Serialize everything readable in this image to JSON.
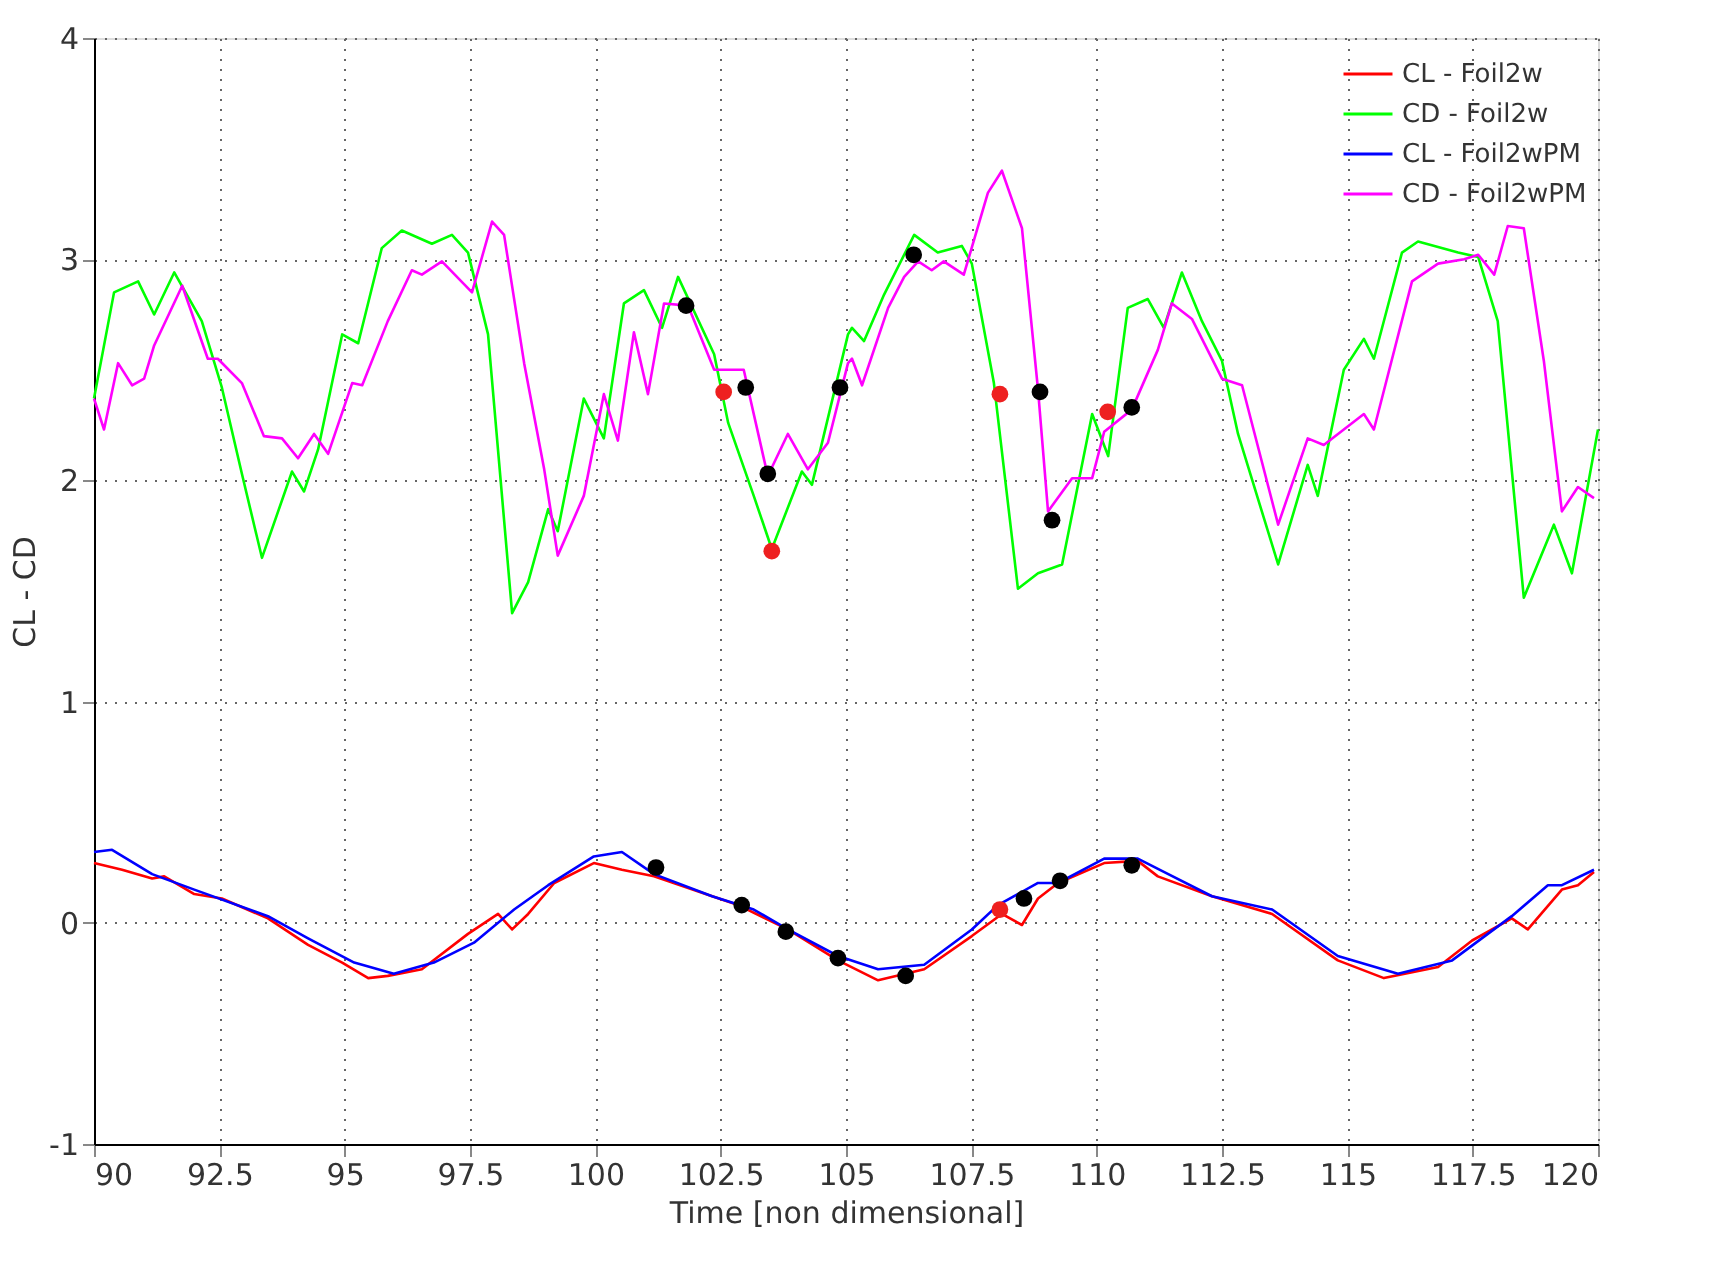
{
  "chart_data": {
    "type": "line",
    "xlabel": "Time [non dimensional]",
    "ylabel": "CL - CD",
    "xlim": [
      90,
      120
    ],
    "ylim": [
      -1,
      4
    ],
    "xticks": [
      90,
      92.5,
      95,
      97.5,
      100,
      102.5,
      105,
      107.5,
      110,
      112.5,
      115,
      117.5,
      120
    ],
    "yticks": [
      -1,
      0,
      1,
      2,
      3,
      4
    ],
    "grid": true,
    "legend": "top right",
    "line_style": "solid",
    "series": [
      {
        "name": "CL - Foil2w",
        "color": "#ff0000",
        "x": [
          90.0,
          90.56,
          91.16,
          91.4,
          92.0,
          92.55,
          93.47,
          94.27,
          94.95,
          95.47,
          95.86,
          96.54,
          97.46,
          98.06,
          98.34,
          98.66,
          99.18,
          99.97,
          100.53,
          101.17,
          102.33,
          102.85,
          103.84,
          104.84,
          105.64,
          106.56,
          107.51,
          108.11,
          108.51,
          108.83,
          109.23,
          110.15,
          110.82,
          111.22,
          112.3,
          113.5,
          114.81,
          115.73,
          116.81,
          117.49,
          118.28,
          118.6,
          119.28,
          119.6,
          119.92
        ],
        "values": [
          0.27,
          0.24,
          0.2,
          0.21,
          0.13,
          0.11,
          0.02,
          -0.1,
          -0.18,
          -0.25,
          -0.24,
          -0.21,
          -0.05,
          0.04,
          -0.03,
          0.04,
          0.18,
          0.27,
          0.24,
          0.21,
          0.12,
          0.08,
          -0.03,
          -0.17,
          -0.26,
          -0.21,
          -0.06,
          0.04,
          -0.01,
          0.11,
          0.18,
          0.27,
          0.28,
          0.21,
          0.12,
          0.04,
          -0.17,
          -0.25,
          -0.2,
          -0.08,
          0.02,
          -0.03,
          0.15,
          0.17,
          0.23
        ]
      },
      {
        "name": "CD - Foil2w",
        "color": "#00ff00",
        "x": [
          90.0,
          90.4,
          90.88,
          91.2,
          91.6,
          92.15,
          92.55,
          92.95,
          93.35,
          93.95,
          94.19,
          94.47,
          94.95,
          95.27,
          95.74,
          96.14,
          96.74,
          97.14,
          97.46,
          97.86,
          98.34,
          98.66,
          99.06,
          99.25,
          99.77,
          100.17,
          100.57,
          100.97,
          101.33,
          101.65,
          102.37,
          102.65,
          103.16,
          103.52,
          104.12,
          104.32,
          105.04,
          105.12,
          105.36,
          105.76,
          106.36,
          106.83,
          107.31,
          107.51,
          107.95,
          108.43,
          108.83,
          109.31,
          109.91,
          110.23,
          110.62,
          111.02,
          111.34,
          111.7,
          112.1,
          112.5,
          112.82,
          113.62,
          114.21,
          114.41,
          114.93,
          115.33,
          115.53,
          116.09,
          116.41,
          117.21,
          117.61,
          118.0,
          118.52,
          119.12,
          119.48,
          120.0
        ],
        "values": [
          2.37,
          2.85,
          2.9,
          2.75,
          2.94,
          2.72,
          2.42,
          2.03,
          1.65,
          2.04,
          1.95,
          2.14,
          2.66,
          2.62,
          3.05,
          3.13,
          3.07,
          3.11,
          3.03,
          2.66,
          1.4,
          1.54,
          1.87,
          1.77,
          2.37,
          2.19,
          2.8,
          2.86,
          2.69,
          2.92,
          2.57,
          2.26,
          1.93,
          1.69,
          2.04,
          1.98,
          2.66,
          2.69,
          2.63,
          2.84,
          3.11,
          3.03,
          3.06,
          2.98,
          2.44,
          1.51,
          1.58,
          1.62,
          2.3,
          2.11,
          2.78,
          2.82,
          2.69,
          2.94,
          2.72,
          2.54,
          2.21,
          1.62,
          2.07,
          1.93,
          2.5,
          2.64,
          2.55,
          3.03,
          3.08,
          3.03,
          3.01,
          2.72,
          1.47,
          1.8,
          1.58,
          2.23
        ]
      },
      {
        "name": "CL - Foil2wPM",
        "color": "#0000ff",
        "x": [
          90.0,
          90.36,
          91.16,
          92.0,
          93.47,
          94.27,
          95.19,
          95.98,
          96.78,
          97.58,
          98.38,
          99.06,
          99.97,
          100.53,
          101.17,
          102.33,
          103.16,
          103.84,
          104.84,
          105.64,
          106.56,
          107.51,
          108.03,
          108.83,
          109.23,
          110.15,
          110.82,
          111.34,
          112.3,
          113.5,
          114.81,
          116.01,
          117.09,
          118.28,
          119.0,
          119.28,
          119.92
        ],
        "values": [
          0.32,
          0.33,
          0.22,
          0.15,
          0.03,
          -0.07,
          -0.18,
          -0.23,
          -0.18,
          -0.09,
          0.06,
          0.17,
          0.3,
          0.32,
          0.22,
          0.12,
          0.06,
          -0.03,
          -0.15,
          -0.21,
          -0.19,
          -0.03,
          0.08,
          0.18,
          0.18,
          0.29,
          0.29,
          0.23,
          0.12,
          0.06,
          -0.15,
          -0.23,
          -0.17,
          0.03,
          0.17,
          0.17,
          0.24
        ]
      },
      {
        "name": "CD - Foil2wPM",
        "color": "#ff00ff",
        "x": [
          90.0,
          90.2,
          90.48,
          90.76,
          91.0,
          91.2,
          91.76,
          92.27,
          92.47,
          92.95,
          93.39,
          93.75,
          94.07,
          94.39,
          94.67,
          95.15,
          95.35,
          95.86,
          96.34,
          96.54,
          96.94,
          97.54,
          97.94,
          98.18,
          98.58,
          98.98,
          99.25,
          99.77,
          100.17,
          100.45,
          100.77,
          101.05,
          101.37,
          101.85,
          102.37,
          102.96,
          103.44,
          103.84,
          104.24,
          104.64,
          105.04,
          105.12,
          105.32,
          105.84,
          106.16,
          106.44,
          106.71,
          106.95,
          107.35,
          107.83,
          108.11,
          108.51,
          108.83,
          109.03,
          109.51,
          109.91,
          110.15,
          110.7,
          111.22,
          111.5,
          111.9,
          112.5,
          112.9,
          113.62,
          114.21,
          114.53,
          115.33,
          115.53,
          116.29,
          116.81,
          117.33,
          117.61,
          117.93,
          118.2,
          118.52,
          118.92,
          119.28,
          119.6,
          119.92
        ],
        "values": [
          2.37,
          2.23,
          2.53,
          2.43,
          2.46,
          2.61,
          2.88,
          2.55,
          2.55,
          2.44,
          2.2,
          2.19,
          2.1,
          2.21,
          2.12,
          2.44,
          2.43,
          2.72,
          2.95,
          2.93,
          2.99,
          2.85,
          3.17,
          3.11,
          2.53,
          2.05,
          1.66,
          1.93,
          2.39,
          2.18,
          2.67,
          2.39,
          2.8,
          2.79,
          2.5,
          2.5,
          2.02,
          2.21,
          2.05,
          2.17,
          2.53,
          2.55,
          2.43,
          2.78,
          2.92,
          2.99,
          2.95,
          2.99,
          2.93,
          3.3,
          3.4,
          3.14,
          2.41,
          1.86,
          2.01,
          2.01,
          2.22,
          2.32,
          2.59,
          2.8,
          2.73,
          2.46,
          2.43,
          1.8,
          2.19,
          2.16,
          2.3,
          2.23,
          2.9,
          2.98,
          3.0,
          3.02,
          2.93,
          3.15,
          3.14,
          2.54,
          1.86,
          1.97,
          1.92
        ]
      },
      {
        "type": "scatter",
        "color": "#000000",
        "marker": "circle",
        "x": [
          101.81,
          103.0,
          103.44,
          104.88,
          106.35,
          108.87,
          109.11,
          110.7,
          101.21,
          102.92,
          103.8,
          104.84,
          106.19,
          108.55,
          109.27,
          110.7
        ],
        "values": [
          2.79,
          2.42,
          2.03,
          2.42,
          3.02,
          2.4,
          1.82,
          2.33,
          0.25,
          0.08,
          -0.04,
          -0.16,
          -0.24,
          0.11,
          0.19,
          0.26
        ]
      },
      {
        "type": "scatter",
        "color": "#ee2020",
        "marker": "circle",
        "x": [
          102.56,
          103.52,
          108.07,
          110.22,
          108.07
        ],
        "values": [
          2.4,
          1.68,
          2.39,
          2.31,
          0.06
        ]
      }
    ]
  }
}
